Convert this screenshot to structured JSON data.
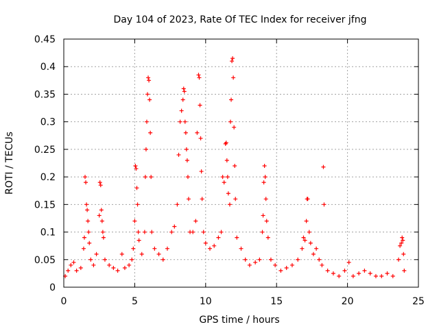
{
  "chart_data": {
    "type": "scatter",
    "title": "Day 104 of 2023, Rate Of TEC Index for receiver jfng",
    "xlabel": "GPS time / hours",
    "ylabel": "ROTI / TECUs",
    "xlim": [
      0,
      25
    ],
    "ylim": [
      0,
      0.45
    ],
    "xticks": [
      0,
      5,
      10,
      15,
      20,
      25
    ],
    "yticks": [
      0,
      0.05,
      0.1,
      0.15,
      0.2,
      0.25,
      0.3,
      0.35,
      0.4,
      0.45
    ],
    "xtick_labels": [
      "0",
      "5",
      "10",
      "15",
      "20",
      "25"
    ],
    "ytick_labels": [
      "0",
      "0.05",
      "0.1",
      "0.15",
      "0.2",
      "0.25",
      "0.3",
      "0.35",
      "0.4",
      "0.45"
    ],
    "grid": true,
    "legend": "none",
    "marker": "+",
    "color": "#ff0000",
    "series": [
      {
        "points": [
          [
            0.1,
            0.02
          ],
          [
            0.3,
            0.03
          ],
          [
            0.5,
            0.04
          ],
          [
            0.7,
            0.045
          ],
          [
            0.9,
            0.03
          ],
          [
            1.2,
            0.035
          ],
          [
            1.4,
            0.07
          ],
          [
            1.45,
            0.09
          ],
          [
            1.5,
            0.2
          ],
          [
            1.55,
            0.19
          ],
          [
            1.6,
            0.15
          ],
          [
            1.65,
            0.14
          ],
          [
            1.7,
            0.12
          ],
          [
            1.75,
            0.1
          ],
          [
            1.8,
            0.08
          ],
          [
            1.9,
            0.05
          ],
          [
            2.1,
            0.04
          ],
          [
            2.3,
            0.06
          ],
          [
            2.5,
            0.13
          ],
          [
            2.55,
            0.19
          ],
          [
            2.6,
            0.185
          ],
          [
            2.65,
            0.14
          ],
          [
            2.7,
            0.12
          ],
          [
            2.75,
            0.1
          ],
          [
            2.8,
            0.09
          ],
          [
            2.9,
            0.05
          ],
          [
            3.2,
            0.04
          ],
          [
            3.5,
            0.035
          ],
          [
            3.8,
            0.03
          ],
          [
            4.1,
            0.06
          ],
          [
            4.3,
            0.035
          ],
          [
            4.6,
            0.04
          ],
          [
            4.8,
            0.05
          ],
          [
            4.9,
            0.07
          ],
          [
            5.0,
            0.12
          ],
          [
            5.05,
            0.22
          ],
          [
            5.1,
            0.215
          ],
          [
            5.15,
            0.18
          ],
          [
            5.2,
            0.15
          ],
          [
            5.25,
            0.1
          ],
          [
            5.3,
            0.085
          ],
          [
            5.5,
            0.06
          ],
          [
            5.7,
            0.1
          ],
          [
            5.75,
            0.2
          ],
          [
            5.8,
            0.25
          ],
          [
            5.85,
            0.3
          ],
          [
            5.9,
            0.35
          ],
          [
            5.95,
            0.38
          ],
          [
            6.0,
            0.375
          ],
          [
            6.05,
            0.34
          ],
          [
            6.1,
            0.28
          ],
          [
            6.15,
            0.2
          ],
          [
            6.2,
            0.1
          ],
          [
            6.4,
            0.07
          ],
          [
            6.7,
            0.06
          ],
          [
            7.0,
            0.05
          ],
          [
            7.3,
            0.07
          ],
          [
            7.6,
            0.1
          ],
          [
            7.8,
            0.11
          ],
          [
            8.0,
            0.15
          ],
          [
            8.1,
            0.24
          ],
          [
            8.2,
            0.3
          ],
          [
            8.3,
            0.32
          ],
          [
            8.4,
            0.34
          ],
          [
            8.45,
            0.36
          ],
          [
            8.5,
            0.355
          ],
          [
            8.55,
            0.3
          ],
          [
            8.6,
            0.28
          ],
          [
            8.65,
            0.25
          ],
          [
            8.7,
            0.23
          ],
          [
            8.75,
            0.2
          ],
          [
            8.8,
            0.16
          ],
          [
            8.9,
            0.1
          ],
          [
            9.1,
            0.1
          ],
          [
            9.3,
            0.12
          ],
          [
            9.4,
            0.28
          ],
          [
            9.5,
            0.385
          ],
          [
            9.55,
            0.38
          ],
          [
            9.6,
            0.33
          ],
          [
            9.65,
            0.27
          ],
          [
            9.7,
            0.21
          ],
          [
            9.75,
            0.16
          ],
          [
            9.85,
            0.1
          ],
          [
            10.0,
            0.08
          ],
          [
            10.3,
            0.07
          ],
          [
            10.6,
            0.075
          ],
          [
            10.9,
            0.09
          ],
          [
            11.1,
            0.1
          ],
          [
            11.2,
            0.2
          ],
          [
            11.3,
            0.19
          ],
          [
            11.4,
            0.26
          ],
          [
            11.45,
            0.262
          ],
          [
            11.5,
            0.23
          ],
          [
            11.55,
            0.2
          ],
          [
            11.6,
            0.17
          ],
          [
            11.7,
            0.15
          ],
          [
            11.75,
            0.3
          ],
          [
            11.8,
            0.34
          ],
          [
            11.85,
            0.41
          ],
          [
            11.9,
            0.415
          ],
          [
            11.95,
            0.38
          ],
          [
            12.0,
            0.29
          ],
          [
            12.05,
            0.22
          ],
          [
            12.1,
            0.16
          ],
          [
            12.2,
            0.09
          ],
          [
            12.5,
            0.07
          ],
          [
            12.8,
            0.05
          ],
          [
            13.1,
            0.04
          ],
          [
            13.5,
            0.045
          ],
          [
            13.8,
            0.05
          ],
          [
            14.0,
            0.1
          ],
          [
            14.05,
            0.13
          ],
          [
            14.1,
            0.19
          ],
          [
            14.15,
            0.22
          ],
          [
            14.2,
            0.2
          ],
          [
            14.25,
            0.16
          ],
          [
            14.3,
            0.12
          ],
          [
            14.4,
            0.09
          ],
          [
            14.6,
            0.05
          ],
          [
            14.9,
            0.04
          ],
          [
            15.3,
            0.03
          ],
          [
            15.7,
            0.035
          ],
          [
            16.1,
            0.04
          ],
          [
            16.5,
            0.05
          ],
          [
            16.8,
            0.07
          ],
          [
            16.9,
            0.09
          ],
          [
            17.0,
            0.085
          ],
          [
            17.1,
            0.12
          ],
          [
            17.15,
            0.16
          ],
          [
            17.2,
            0.16
          ],
          [
            17.3,
            0.1
          ],
          [
            17.4,
            0.08
          ],
          [
            17.6,
            0.06
          ],
          [
            17.8,
            0.07
          ],
          [
            18.0,
            0.05
          ],
          [
            18.2,
            0.04
          ],
          [
            18.3,
            0.218
          ],
          [
            18.35,
            0.15
          ],
          [
            18.6,
            0.03
          ],
          [
            19.0,
            0.025
          ],
          [
            19.4,
            0.02
          ],
          [
            19.8,
            0.03
          ],
          [
            20.1,
            0.045
          ],
          [
            20.4,
            0.02
          ],
          [
            20.8,
            0.025
          ],
          [
            21.2,
            0.03
          ],
          [
            21.6,
            0.025
          ],
          [
            22.0,
            0.02
          ],
          [
            22.4,
            0.02
          ],
          [
            22.8,
            0.025
          ],
          [
            23.2,
            0.02
          ],
          [
            23.6,
            0.05
          ],
          [
            23.7,
            0.075
          ],
          [
            23.8,
            0.08
          ],
          [
            23.85,
            0.09
          ],
          [
            23.9,
            0.085
          ],
          [
            23.95,
            0.06
          ],
          [
            24.0,
            0.03
          ]
        ]
      }
    ]
  }
}
